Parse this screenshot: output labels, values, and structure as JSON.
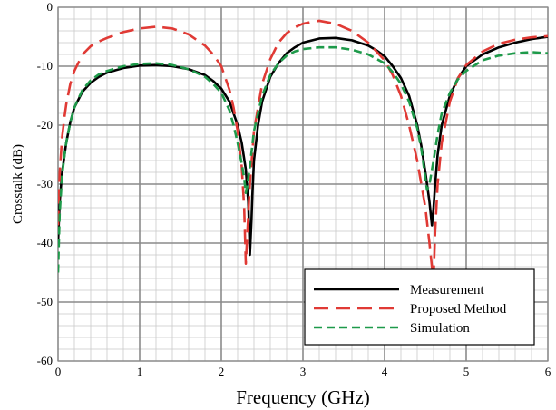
{
  "chart_data": {
    "type": "line",
    "title": "",
    "xlabel": "Frequency (GHz)",
    "ylabel": "Crosstalk (dB)",
    "xlim": [
      0,
      6
    ],
    "ylim": [
      -60,
      0
    ],
    "xticks": [
      0,
      1,
      2,
      3,
      4,
      5,
      6
    ],
    "yticks": [
      0,
      -10,
      -20,
      -30,
      -40,
      -50,
      -60
    ],
    "xtick_labels": [
      "0",
      "1",
      "2",
      "3",
      "4",
      "5",
      "6"
    ],
    "ytick_labels": [
      "0",
      "-10",
      "-20",
      "-30",
      "-40",
      "-50",
      "-60"
    ],
    "grid": true,
    "minor_grid": true,
    "legend_position": "bottom-right",
    "series": [
      {
        "name": "Measurement",
        "color": "#000000",
        "style": "solid",
        "x": [
          0.0,
          0.02,
          0.05,
          0.08,
          0.1,
          0.15,
          0.2,
          0.3,
          0.4,
          0.5,
          0.6,
          0.8,
          1.0,
          1.2,
          1.4,
          1.6,
          1.8,
          1.9,
          2.0,
          2.1,
          2.2,
          2.25,
          2.3,
          2.33,
          2.35,
          2.37,
          2.38,
          2.4,
          2.45,
          2.5,
          2.6,
          2.7,
          2.8,
          2.9,
          3.0,
          3.2,
          3.4,
          3.6,
          3.8,
          3.9,
          4.0,
          4.1,
          4.2,
          4.3,
          4.4,
          4.45,
          4.5,
          4.55,
          4.58,
          4.6,
          4.62,
          4.65,
          4.7,
          4.8,
          4.9,
          5.0,
          5.2,
          5.4,
          5.6,
          5.8,
          6.0
        ],
        "y": [
          -40.0,
          -33.0,
          -28.0,
          -25.0,
          -23.0,
          -19.5,
          -17.0,
          -14.3,
          -12.8,
          -11.8,
          -11.1,
          -10.3,
          -9.9,
          -9.8,
          -10.0,
          -10.5,
          -11.5,
          -12.5,
          -13.8,
          -16.0,
          -20.0,
          -23.0,
          -27.5,
          -33.0,
          -42.0,
          -36.0,
          -32.0,
          -26.0,
          -20.0,
          -16.0,
          -11.8,
          -9.5,
          -7.8,
          -6.8,
          -6.0,
          -5.3,
          -5.2,
          -5.6,
          -6.5,
          -7.3,
          -8.3,
          -10.0,
          -12.0,
          -15.0,
          -20.0,
          -23.5,
          -28.0,
          -33.0,
          -37.0,
          -34.0,
          -30.0,
          -25.0,
          -20.0,
          -15.0,
          -12.0,
          -10.0,
          -8.0,
          -6.8,
          -6.0,
          -5.4,
          -5.0
        ]
      },
      {
        "name": "Proposed Method",
        "color": "#e03a35",
        "style": "long-dash",
        "x": [
          0.0,
          0.02,
          0.05,
          0.08,
          0.1,
          0.15,
          0.2,
          0.3,
          0.4,
          0.5,
          0.6,
          0.8,
          1.0,
          1.2,
          1.4,
          1.6,
          1.8,
          1.9,
          2.0,
          2.1,
          2.15,
          2.2,
          2.25,
          2.28,
          2.3,
          2.32,
          2.35,
          2.4,
          2.5,
          2.6,
          2.7,
          2.8,
          2.9,
          3.0,
          3.1,
          3.2,
          3.4,
          3.6,
          3.8,
          4.0,
          4.1,
          4.2,
          4.3,
          4.4,
          4.5,
          4.55,
          4.58,
          4.6,
          4.62,
          4.65,
          4.7,
          4.8,
          4.9,
          5.0,
          5.2,
          5.4,
          5.6,
          5.8,
          6.0
        ],
        "y": [
          -37.0,
          -28.0,
          -22.0,
          -18.5,
          -16.5,
          -13.0,
          -10.8,
          -8.0,
          -6.6,
          -5.8,
          -5.2,
          -4.2,
          -3.6,
          -3.3,
          -3.6,
          -4.6,
          -6.5,
          -8.0,
          -10.0,
          -14.0,
          -17.0,
          -21.0,
          -27.0,
          -34.0,
          -43.5,
          -38.0,
          -30.0,
          -21.0,
          -13.0,
          -8.8,
          -6.0,
          -4.4,
          -3.4,
          -2.8,
          -2.5,
          -2.3,
          -2.8,
          -4.0,
          -6.0,
          -9.0,
          -11.5,
          -15.0,
          -20.0,
          -26.0,
          -34.0,
          -40.0,
          -44.0,
          -46.0,
          -38.0,
          -30.0,
          -23.0,
          -16.0,
          -12.0,
          -9.8,
          -7.5,
          -6.2,
          -5.5,
          -5.1,
          -4.9
        ]
      },
      {
        "name": "Simulation",
        "color": "#1e9a4a",
        "style": "short-dash",
        "x": [
          0.0,
          0.02,
          0.05,
          0.08,
          0.1,
          0.15,
          0.2,
          0.3,
          0.4,
          0.5,
          0.6,
          0.8,
          1.0,
          1.2,
          1.4,
          1.6,
          1.8,
          1.9,
          2.0,
          2.1,
          2.15,
          2.2,
          2.25,
          2.28,
          2.3,
          2.32,
          2.35,
          2.4,
          2.5,
          2.6,
          2.7,
          2.8,
          2.9,
          3.0,
          3.2,
          3.4,
          3.6,
          3.8,
          4.0,
          4.1,
          4.2,
          4.3,
          4.4,
          4.45,
          4.5,
          4.52,
          4.55,
          4.6,
          4.65,
          4.7,
          4.8,
          4.9,
          5.0,
          5.2,
          5.4,
          5.6,
          5.8,
          6.0
        ],
        "y": [
          -45.0,
          -35.0,
          -28.5,
          -25.0,
          -23.0,
          -19.5,
          -17.0,
          -14.0,
          -12.4,
          -11.4,
          -10.8,
          -10.0,
          -9.6,
          -9.5,
          -9.8,
          -10.5,
          -11.8,
          -13.0,
          -14.5,
          -17.5,
          -20.0,
          -23.0,
          -26.5,
          -29.0,
          -31.5,
          -30.0,
          -27.0,
          -21.0,
          -15.0,
          -11.5,
          -9.5,
          -8.2,
          -7.5,
          -7.1,
          -6.8,
          -6.8,
          -7.2,
          -8.0,
          -9.5,
          -11.0,
          -13.0,
          -16.0,
          -20.5,
          -24.0,
          -29.0,
          -31.0,
          -30.0,
          -26.0,
          -21.5,
          -18.0,
          -14.5,
          -12.2,
          -10.8,
          -9.0,
          -8.2,
          -7.8,
          -7.6,
          -7.8
        ]
      }
    ]
  }
}
